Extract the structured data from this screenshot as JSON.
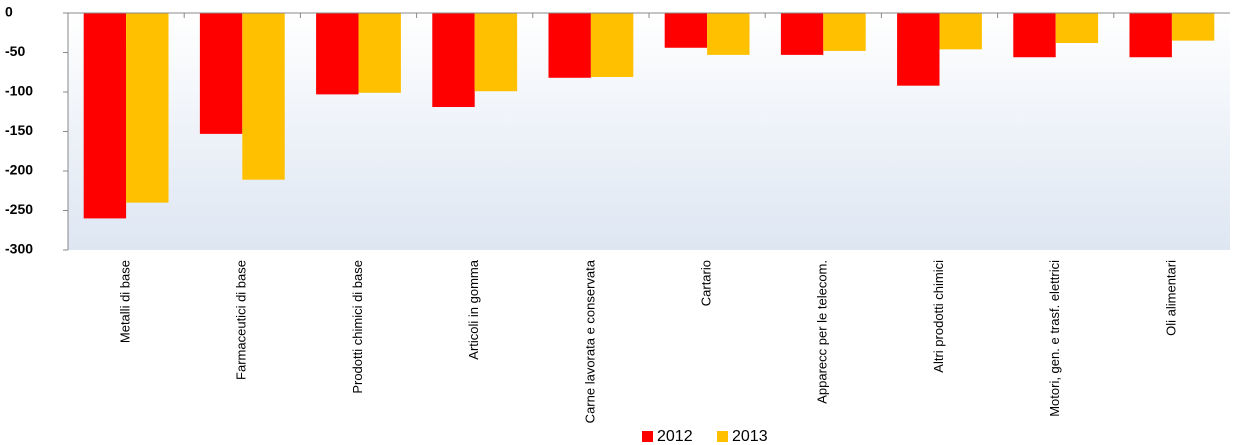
{
  "chart_data": {
    "type": "bar",
    "categories": [
      "Metalli di base",
      "Farmaceutici di base",
      "Prodotti chimici di base",
      "Articoli in gomma",
      "Carne lavorata e conservata",
      "Cartario",
      "Apparecc per le telecom.",
      "Altri prodotti chimici",
      "Motori, gen. e trasf. elettrici",
      "Oli alimentari"
    ],
    "series": [
      {
        "name": "2012",
        "color": "#ff0000",
        "values": [
          -260,
          -153,
          -103,
          -119,
          -82,
          -44,
          -53,
          -92,
          -56,
          -56
        ]
      },
      {
        "name": "2013",
        "color": "#ffc000",
        "values": [
          -240,
          -211,
          -101,
          -99,
          -81,
          -53,
          -48,
          -46,
          -38,
          -35
        ]
      }
    ],
    "ylim": [
      -300,
      0
    ],
    "yticks": [
      0,
      -50,
      -100,
      -150,
      -200,
      -250,
      -300
    ],
    "legend": "bottom"
  }
}
